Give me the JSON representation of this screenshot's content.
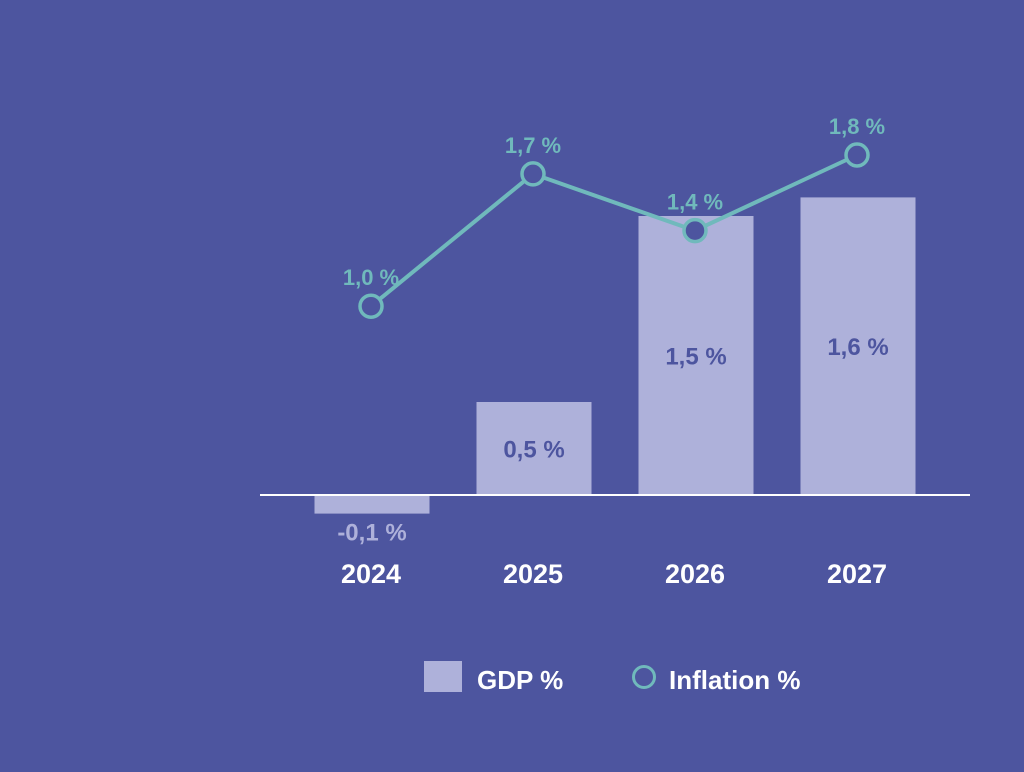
{
  "chart_data": {
    "type": "bar",
    "categories": [
      "2024",
      "2025",
      "2026",
      "2027"
    ],
    "series": [
      {
        "name": "GDP %",
        "type": "bar",
        "values": [
          -0.1,
          0.5,
          1.5,
          1.6
        ],
        "labels": [
          "-0,1 %",
          "0,5 %",
          "1,5 %",
          "1,6 %"
        ]
      },
      {
        "name": "Inflation %",
        "type": "line",
        "values": [
          1.0,
          1.7,
          1.4,
          1.8
        ],
        "labels": [
          "1,0 %",
          "1,7 %",
          "1,4 %",
          "1,8 %"
        ]
      }
    ],
    "title": "",
    "xlabel": "",
    "ylabel": "",
    "grid": false,
    "legend_position": "bottom-center"
  },
  "colors": {
    "background": "#4d559f",
    "bar": "#aeb1da",
    "line": "#70b9bc",
    "axis": "#ffffff",
    "inside_label": "#4d559f",
    "outside_label": "#aeb1da",
    "category_label": "#ffffff",
    "legend_text": "#ffffff"
  }
}
